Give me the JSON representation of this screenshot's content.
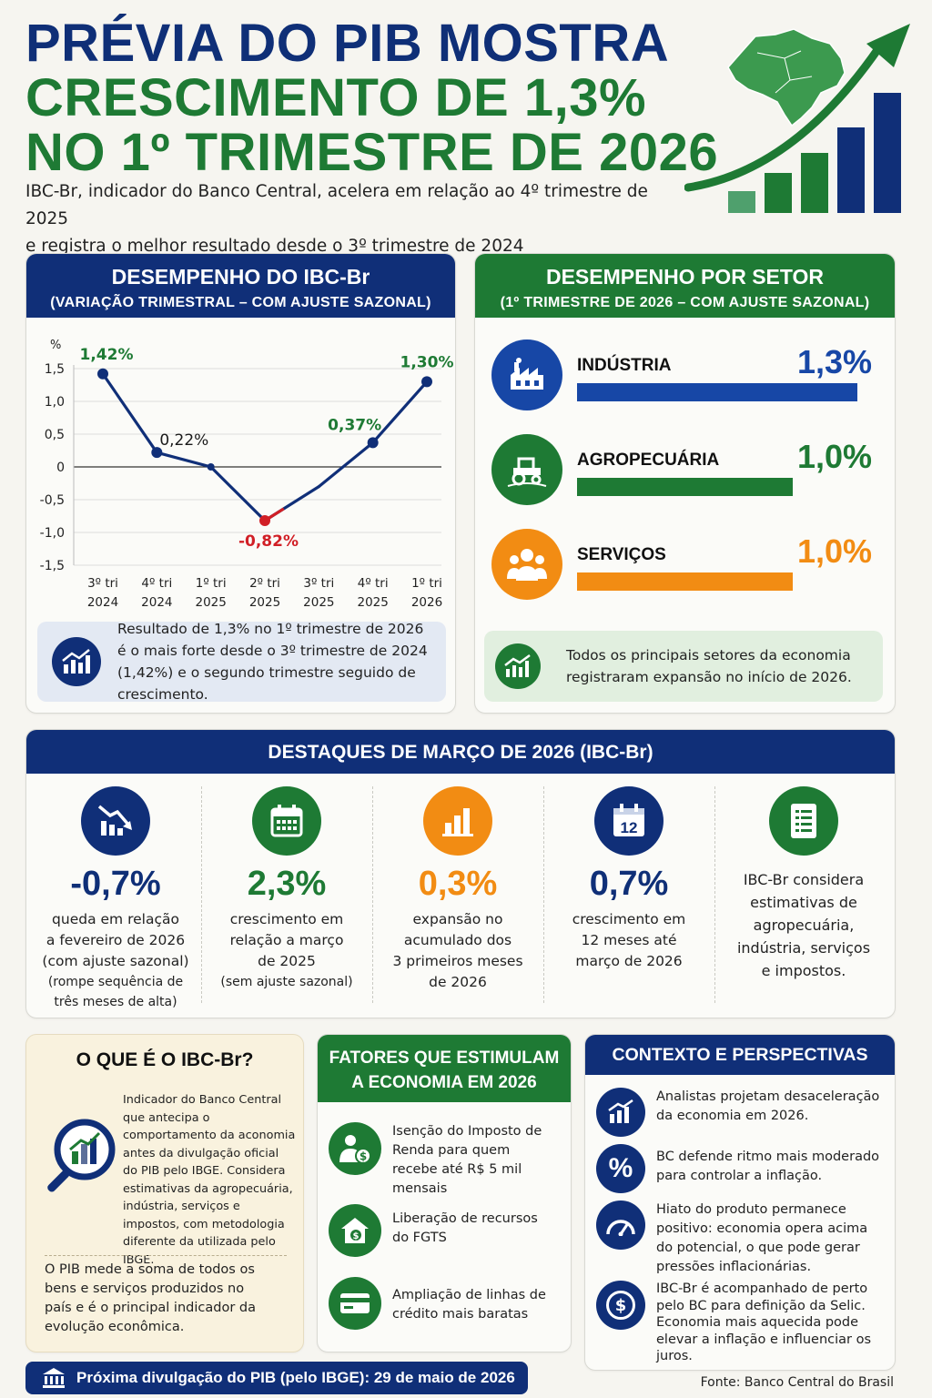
{
  "header": {
    "title_line1": "PRÉVIA DO PIB MOSTRA",
    "title_line2": "CRESCIMENTO DE 1,3%",
    "title_line3": "NO 1º TRIMESTRE DE 2026",
    "subtitle_line1": "IBC-Br, indicador do Banco Central, acelera em relação ao 4º trimestre de 2025",
    "subtitle_line2": "e registra o melhor resultado desde o 3º trimestre de 2024"
  },
  "ibc_panel": {
    "title": "DESEMPENHO DO IBC-Br",
    "subtitle": "(VARIAÇÃO TRIMESTRAL – COM AJUSTE SAZONAL)",
    "note": "Resultado de 1,3% no 1º trimestre de 2026 é o mais forte desde o 3º trimestre de 2024 (1,42%) e o segundo trimestre seguido de crescimento."
  },
  "chart_data": {
    "type": "line",
    "title": "DESEMPENHO DO IBC-Br",
    "ylabel": "%",
    "ylim": [
      -1.5,
      1.5
    ],
    "yticks": [
      1.5,
      1.0,
      0.5,
      0,
      -0.5,
      -1.0,
      -1.5
    ],
    "ytick_labels": [
      "1,5",
      "1,0",
      "0,5",
      "0",
      "-0,5",
      "-1,0",
      "-1,5"
    ],
    "categories": [
      [
        "3º tri",
        "2024"
      ],
      [
        "4º tri",
        "2024"
      ],
      [
        "1º tri",
        "2025"
      ],
      [
        "2º tri",
        "2025"
      ],
      [
        "3º tri",
        "2025"
      ],
      [
        "4º tri",
        "2025"
      ],
      [
        "1º tri",
        "2026"
      ]
    ],
    "values": [
      1.42,
      0.22,
      0,
      -0.82,
      -0.3,
      0.37,
      1.3
    ],
    "labeled_points": [
      {
        "index": 0,
        "label": "1,42%",
        "color": "#1e7a34"
      },
      {
        "index": 1,
        "label": "0,22%",
        "color": "#1a1a1a"
      },
      {
        "index": 3,
        "label": "-0,82%",
        "color": "#d11f26"
      },
      {
        "index": 5,
        "label": "0,37%",
        "color": "#1e7a34"
      },
      {
        "index": 6,
        "label": "1,30%",
        "color": "#1e7a34"
      }
    ],
    "line_color": "#102f78",
    "highlight_color": "#d11f26",
    "grid": true
  },
  "sector_panel": {
    "title": "DESEMPENHO POR SETOR",
    "subtitle": "(1º TRIMESTRE DE 2026 – COM AJUSTE SAZONAL)",
    "sectors": [
      {
        "name": "INDÚSTRIA",
        "value_label": "1,3%",
        "value": 1.3,
        "color": "#1747a6",
        "icon": "factory-icon"
      },
      {
        "name": "AGROPECUÁRIA",
        "value_label": "1,0%",
        "value": 1.0,
        "color": "#1e7a34",
        "icon": "tractor-icon"
      },
      {
        "name": "SERVIÇOS",
        "value_label": "1,0%",
        "value": 1.0,
        "color": "#f28c13",
        "icon": "people-icon"
      }
    ],
    "note": "Todos os principais setores da economia registraram expansão no início de 2026."
  },
  "highlights": {
    "title": "DESTAQUES DE MARÇO DE 2026 (IBC-Br)",
    "items": [
      {
        "value": "-0,7%",
        "color": "#0f2f77",
        "icon": "chart-down-icon",
        "desc": [
          "queda em relação",
          "a fevereiro de 2026",
          "(com ajuste sazonal)"
        ],
        "small": [
          "(rompe sequência de",
          "três meses de alta)"
        ]
      },
      {
        "value": "2,3%",
        "color": "#1e7a34",
        "icon": "calendar-icon",
        "desc": [
          "crescimento em",
          "relação a março",
          "de 2025"
        ],
        "small": [
          "(sem ajuste sazonal)"
        ]
      },
      {
        "value": "0,3%",
        "color": "#f28c13",
        "icon": "bar-chart-icon",
        "desc": [
          "expansão no",
          "acumulado dos",
          "3 primeiros meses",
          "de 2026"
        ],
        "small": []
      },
      {
        "value": "0,7%",
        "color": "#0f2f77",
        "icon": "calendar-12-icon",
        "calendar_number": "12",
        "desc": [
          "crescimento em",
          "12 meses até",
          "março de 2026"
        ],
        "small": []
      },
      {
        "value": "",
        "color": "#1e7a34",
        "icon": "document-icon",
        "desc": [
          "IBC-Br considera",
          "estimativas de",
          "agropecuária,",
          "indústria, serviços",
          "e impostos."
        ],
        "small": []
      }
    ]
  },
  "what_is": {
    "title": "O QUE É O IBC-Br?",
    "text1": "Indicador do Banco Central que antecipa o comportamento da aconomia antes da divulgação oficial do PIB pelo IBGE. Considera estimativas da agropecuária, indústria, serviços e impostos, com metodologia diferente da utilizada pelo IBGE.",
    "text2": "O PIB mede a soma de todos os bens e serviços produzidos no país e é o principal indicador da evolução econômica."
  },
  "factors": {
    "title_line1": "FATORES QUE ESTIMULAM",
    "title_line2": "A ECONOMIA EM 2026",
    "items": [
      {
        "text": "Isenção do Imposto de Renda para quem recebe até R$ 5 mil mensais",
        "icon": "person-money-icon"
      },
      {
        "text": "Liberação de recursos do FGTS",
        "icon": "house-money-icon"
      },
      {
        "text": "Ampliação de linhas de crédito mais baratas",
        "icon": "credit-card-icon"
      }
    ]
  },
  "context": {
    "title": "CONTEXTO E PERSPECTIVAS",
    "items": [
      {
        "text": "Analistas projetam desaceleração da economia em 2026.",
        "icon": "trend-chart-icon"
      },
      {
        "text": "BC defende ritmo mais moderado para controlar a inflação.",
        "icon": "percent-icon",
        "glyph": "%"
      },
      {
        "text": "Hiato do produto permanece positivo: economia opera acima do potencial, o que pode gerar pressões inflacionárias.",
        "icon": "gauge-icon"
      },
      {
        "text": "IBC-Br é acompanhado de perto pelo BC para definição da Selic. Economia mais aquecida pode elevar a inflação e influenciar os juros.",
        "icon": "dollar-coin-icon",
        "glyph": "$"
      }
    ]
  },
  "footer": {
    "next_release": "Próxima divulgação do PIB (pelo IBGE): 29 de maio de 2026",
    "source": "Fonte: Banco Central do Brasil"
  },
  "colors": {
    "navy": "#102f78",
    "green": "#1e7a34",
    "orange": "#f28c13",
    "red": "#d11f26",
    "blue": "#1747a6"
  }
}
